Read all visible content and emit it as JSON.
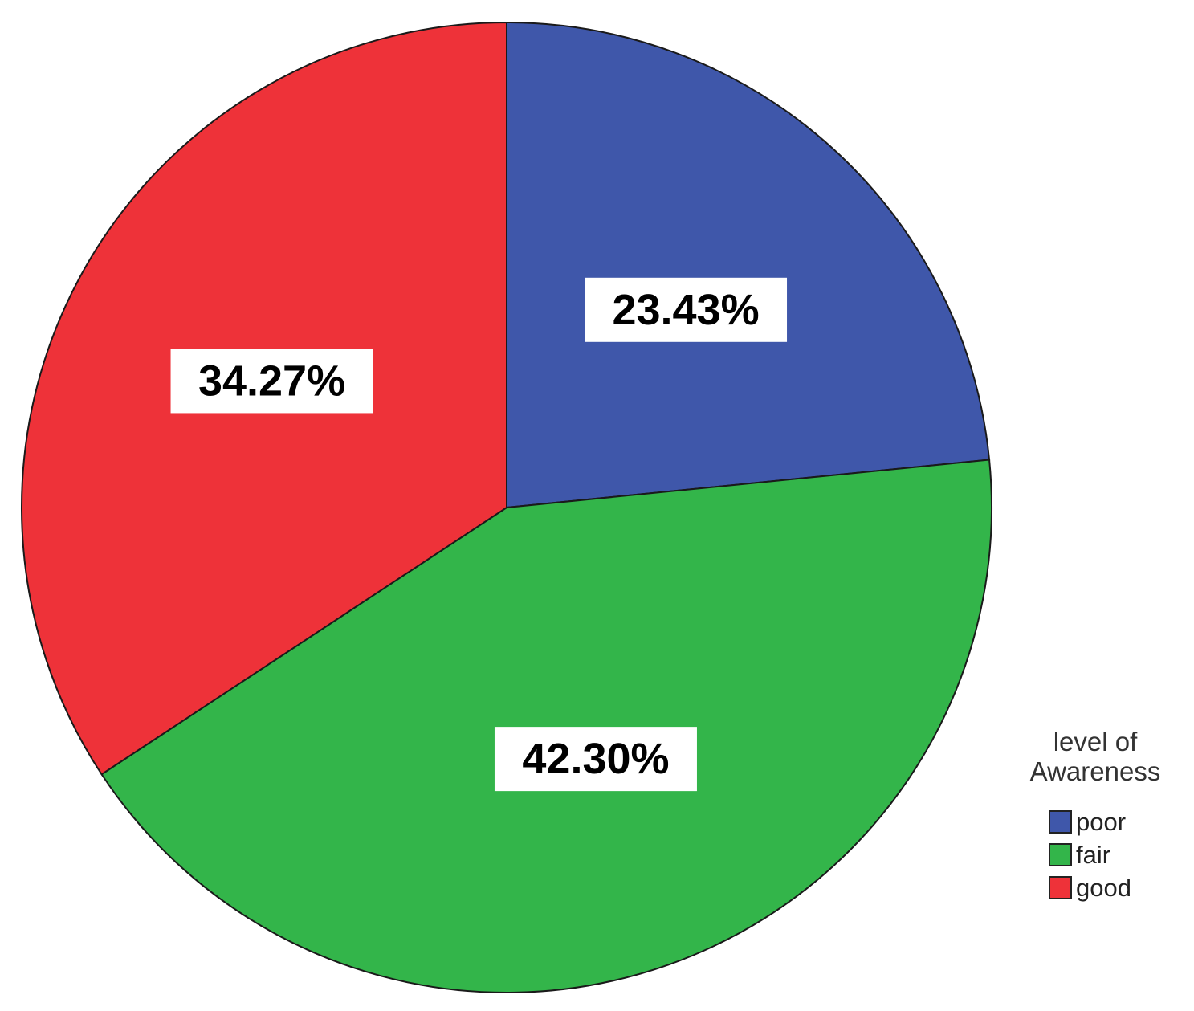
{
  "chart_data": {
    "type": "pie",
    "legend_title": "level of Awareness",
    "legend_placement": "bottom-right",
    "slices": [
      {
        "label": "poor",
        "value": 23.43,
        "display": "23.43%",
        "color": "#3f57aa"
      },
      {
        "label": "fair",
        "value": 42.3,
        "display": "42.30%",
        "color": "#33b54a"
      },
      {
        "label": "good",
        "value": 34.27,
        "display": "34.27%",
        "color": "#ee3239"
      }
    ],
    "start_angle_deg": 0,
    "direction": "clockwise"
  }
}
